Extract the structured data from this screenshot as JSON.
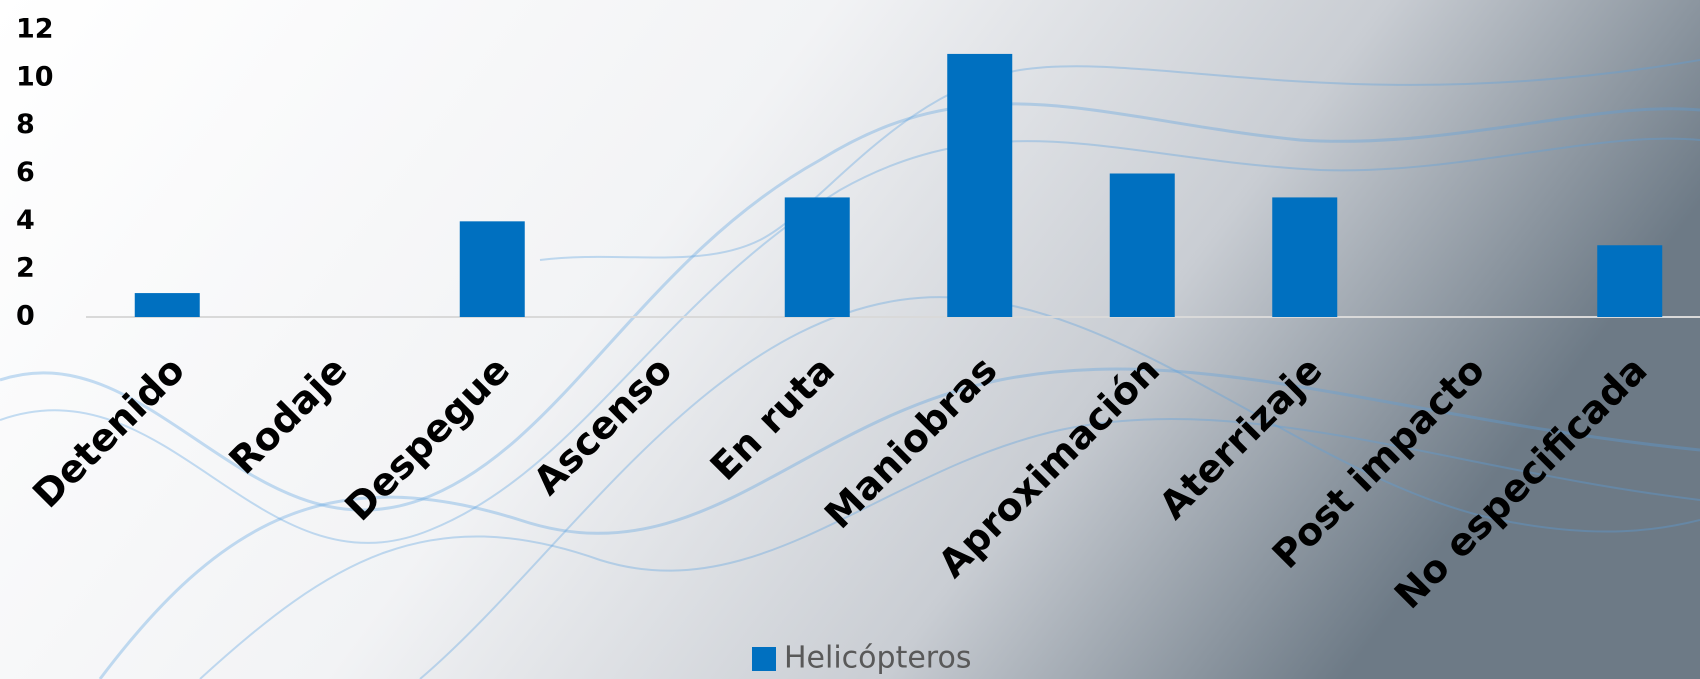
{
  "chart_data": {
    "type": "bar",
    "categories": [
      "Detenido",
      "Rodaje",
      "Despegue",
      "Ascenso",
      "En ruta",
      "Maniobras",
      "Aproximación",
      "Aterrizaje",
      "Post impacto",
      "No especificada"
    ],
    "series": [
      {
        "name": "Helicópteros",
        "color": "#0070c0",
        "values": [
          1,
          0,
          4,
          0,
          5,
          11,
          6,
          5,
          0,
          3
        ]
      }
    ],
    "ylim": [
      0,
      12
    ],
    "yticks": [
      0,
      2,
      4,
      6,
      8,
      10,
      12
    ],
    "grid": false,
    "legend": "bottom"
  }
}
